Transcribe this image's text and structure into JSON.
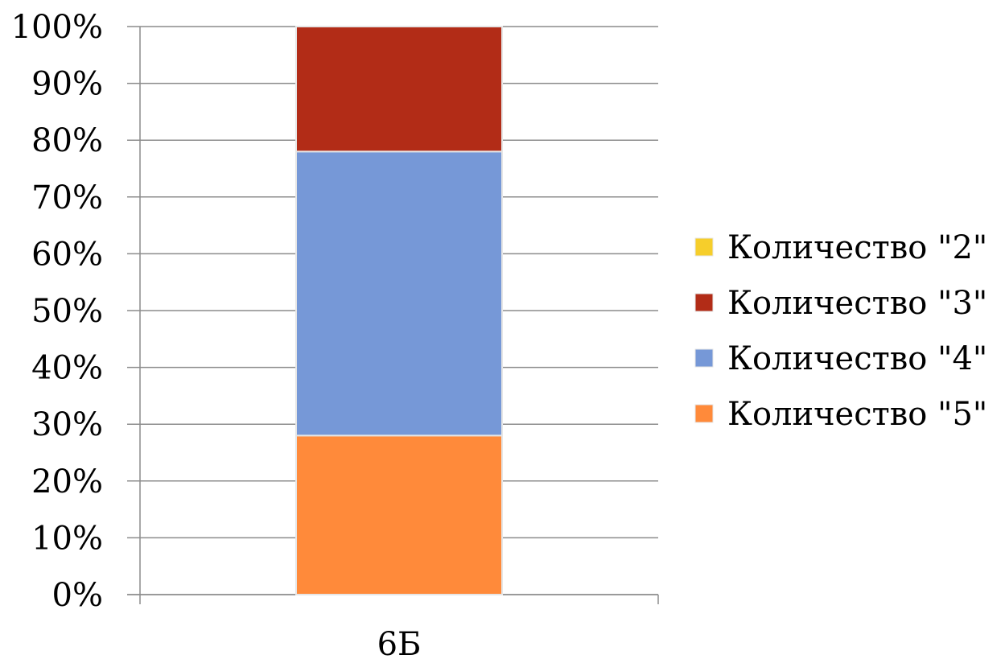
{
  "chart_data": {
    "type": "bar",
    "stacked": true,
    "percent": true,
    "title": "",
    "xlabel": "",
    "ylabel": "",
    "categories": [
      "6Б"
    ],
    "ylim": [
      0,
      100
    ],
    "yticks": [
      "0%",
      "10%",
      "20%",
      "30%",
      "40%",
      "50%",
      "60%",
      "70%",
      "80%",
      "90%",
      "100%"
    ],
    "grid": true,
    "legend_position": "right",
    "series": [
      {
        "name": "Количество \"5\"",
        "values": [
          28
        ],
        "color": "#FF8A3A"
      },
      {
        "name": "Количество \"4\"",
        "values": [
          50
        ],
        "color": "#7698D7"
      },
      {
        "name": "Количество \"3\"",
        "values": [
          22
        ],
        "color": "#B22C17"
      },
      {
        "name": "Количество \"2\"",
        "values": [
          0
        ],
        "color": "#F6CE2B"
      }
    ],
    "legend_order": [
      "Количество \"2\"",
      "Количество \"3\"",
      "Количество \"4\"",
      "Количество \"5\""
    ]
  }
}
